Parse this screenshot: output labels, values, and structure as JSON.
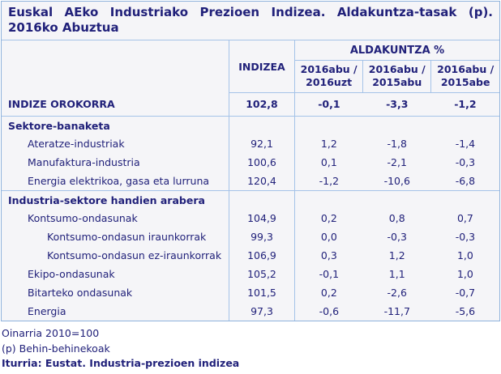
{
  "title": {
    "line1": "Euskal AEko Industriako Prezioen Indizea. Aldakuntza-tasak (p).",
    "line2": "2016ko Abuztua"
  },
  "table": {
    "index_header": "INDIZEA",
    "group_header": "ALDAKUNTZA %",
    "period_headers": [
      "2016abu / 2016uzt",
      "2016abu / 2015abu",
      "2016abu / 2015abe"
    ],
    "rows": [
      {
        "label": "INDIZE OROKORRA",
        "values": [
          "102,8",
          "-0,1",
          "-3,3",
          "-1,2"
        ]
      },
      {
        "label": "Sektore-banaketa",
        "values": [
          "",
          "",
          "",
          ""
        ]
      },
      {
        "label": "Ateratze-industriak",
        "values": [
          "92,1",
          "1,2",
          "-1,8",
          "-1,4"
        ]
      },
      {
        "label": "Manufaktura-industria",
        "values": [
          "100,6",
          "0,1",
          "-2,1",
          "-0,3"
        ]
      },
      {
        "label": "Energia elektrikoa, gasa eta lurruna",
        "values": [
          "120,4",
          "-1,2",
          "-10,6",
          "-6,8"
        ]
      },
      {
        "label": "Industria-sektore handien arabera",
        "values": [
          "",
          "",
          "",
          ""
        ]
      },
      {
        "label": "Kontsumo-ondasunak",
        "values": [
          "104,9",
          "0,2",
          "0,8",
          "0,7"
        ]
      },
      {
        "label": "Kontsumo-ondasun iraunkorrak",
        "values": [
          "99,3",
          "0,0",
          "-0,3",
          "-0,3"
        ]
      },
      {
        "label": "Kontsumo-ondasun ez-iraunkorrak",
        "values": [
          "106,9",
          "0,3",
          "1,2",
          "1,0"
        ]
      },
      {
        "label": "Ekipo-ondasunak",
        "values": [
          "105,2",
          "-0,1",
          "1,1",
          "1,0"
        ]
      },
      {
        "label": "Bitarteko ondasunak",
        "values": [
          "101,5",
          "0,2",
          "-2,6",
          "-0,7"
        ]
      },
      {
        "label": "Energia",
        "values": [
          "97,3",
          "-0,6",
          "-11,7",
          "-5,6"
        ]
      }
    ]
  },
  "footnotes": {
    "base": "Oinarria 2010=100",
    "provisional": "(p) Behin-behinekoak",
    "source": "Iturria: Eustat. Industria-prezioen indizea"
  },
  "colors": {
    "text": "#21217A",
    "border": "#A5C3E8",
    "outer_border": "#8FB2DC",
    "table_background": "#F5F5F8",
    "page_background": "#FFFFFF"
  },
  "chart_data": {
    "type": "table",
    "title": "Euskal AEko Industriako Prezioen Indizea. Aldakuntza-tasak (p). 2016ko Abuztua",
    "columns": [
      "",
      "INDIZEA",
      "ALDAKUNTZA % 2016abu / 2016uzt",
      "ALDAKUNTZA % 2016abu / 2015abu",
      "ALDAKUNTZA % 2016abu / 2015abe"
    ],
    "rows": [
      {
        "label": "INDIZE OROKORRA",
        "section": null,
        "values": [
          102.8,
          -0.1,
          -3.3,
          -1.2
        ]
      },
      {
        "label": "Ateratze-industriak",
        "section": "Sektore-banaketa",
        "values": [
          92.1,
          1.2,
          -1.8,
          -1.4
        ]
      },
      {
        "label": "Manufaktura-industria",
        "section": "Sektore-banaketa",
        "values": [
          100.6,
          0.1,
          -2.1,
          -0.3
        ]
      },
      {
        "label": "Energia elektrikoa, gasa eta lurruna",
        "section": "Sektore-banaketa",
        "values": [
          120.4,
          -1.2,
          -10.6,
          -6.8
        ]
      },
      {
        "label": "Kontsumo-ondasunak",
        "section": "Industria-sektore handien arabera",
        "values": [
          104.9,
          0.2,
          0.8,
          0.7
        ]
      },
      {
        "label": "Kontsumo-ondasun iraunkorrak",
        "section": "Industria-sektore handien arabera",
        "values": [
          99.3,
          0.0,
          -0.3,
          -0.3
        ]
      },
      {
        "label": "Kontsumo-ondasun ez-iraunkorrak",
        "section": "Industria-sektore handien arabera",
        "values": [
          106.9,
          0.3,
          1.2,
          1.0
        ]
      },
      {
        "label": "Ekipo-ondasunak",
        "section": "Industria-sektore handien arabera",
        "values": [
          105.2,
          -0.1,
          1.1,
          1.0
        ]
      },
      {
        "label": "Bitarteko ondasunak",
        "section": "Industria-sektore handien arabera",
        "values": [
          101.5,
          0.2,
          -2.6,
          -0.7
        ]
      },
      {
        "label": "Energia",
        "section": "Industria-sektore handien arabera",
        "values": [
          97.3,
          -0.6,
          -11.7,
          -5.6
        ]
      }
    ],
    "notes": [
      "Oinarria 2010=100",
      "(p) Behin-behinekoak"
    ],
    "source": "Iturria: Eustat. Industria-prezioen indizea"
  }
}
